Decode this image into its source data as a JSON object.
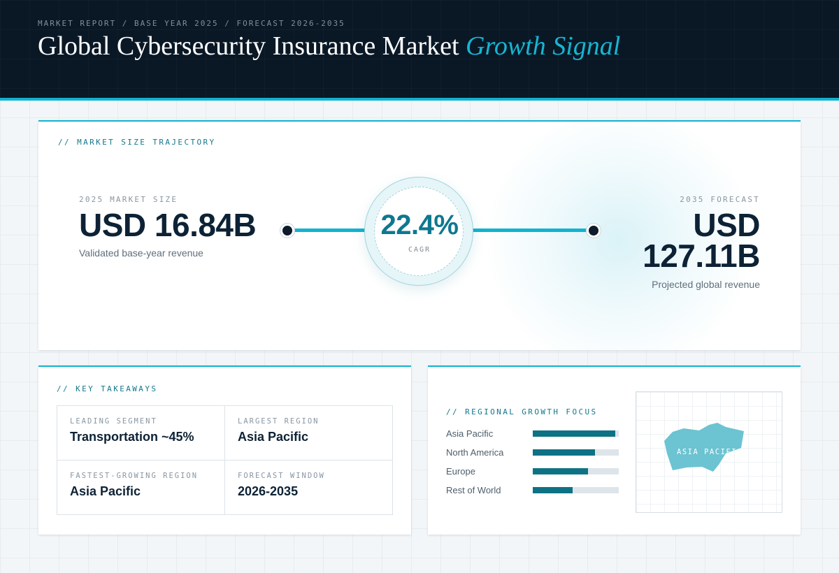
{
  "header": {
    "breadcrumb": "MARKET REPORT / BASE YEAR 2025 / FORECAST 2026-2035",
    "title_main": "Global Cybersecurity Insurance Market",
    "title_accent": "Growth Signal"
  },
  "trajectory": {
    "label": "// MARKET SIZE TRAJECTORY",
    "base": {
      "caption": "2025 MARKET SIZE",
      "value": "USD 16.84B",
      "note": "Validated base-year revenue"
    },
    "cagr": {
      "value": "22.4%",
      "caption": "CAGR"
    },
    "forecast": {
      "caption": "2035 FORECAST",
      "value_line1": "USD",
      "value_line2": "127.11B",
      "note": "Projected global revenue"
    }
  },
  "takeaways": {
    "label": "// KEY TAKEAWAYS",
    "items": [
      {
        "caption": "LEADING SEGMENT",
        "value": "Transportation ~45%"
      },
      {
        "caption": "LARGEST REGION",
        "value": "Asia Pacific"
      },
      {
        "caption": "FASTEST-GROWING REGION",
        "value": "Asia Pacific"
      },
      {
        "caption": "FORECAST WINDOW",
        "value": "2026-2035"
      }
    ]
  },
  "regional": {
    "label": "// REGIONAL GROWTH FOCUS",
    "bars": [
      {
        "name": "Asia Pacific",
        "fill": 0.96
      },
      {
        "name": "North America",
        "fill": 0.72
      },
      {
        "name": "Europe",
        "fill": 0.64
      },
      {
        "name": "Rest of World",
        "fill": 0.46
      }
    ],
    "map_label": "ASIA PACIFIC"
  },
  "colors": {
    "accent": "#12b3cf",
    "accent_dark": "#0e7285",
    "navy": "#0a1826",
    "map_fill": "#6cc3d2"
  }
}
